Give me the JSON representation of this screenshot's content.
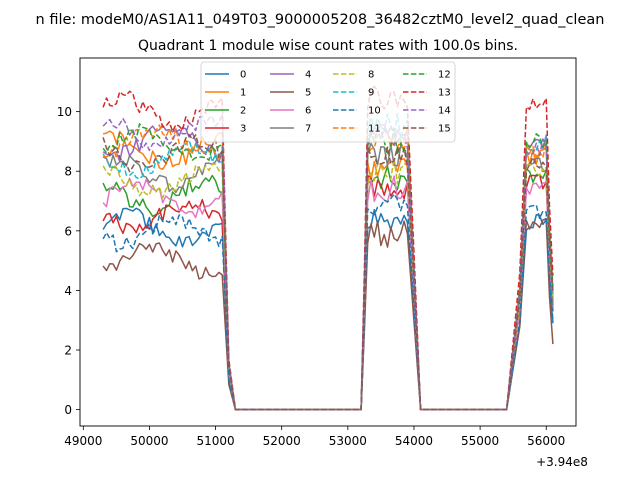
{
  "chart_data": {
    "type": "line",
    "suptitle": "n file: modeM0/AS1A11_049T03_9000005208_36482cztM0_level2_quad_clean",
    "title": "Quadrant 1 module wise count rates with 100.0s bins.",
    "xlabel": "",
    "ylabel": "",
    "x_offset_label": "+3.94e8",
    "xlim": [
      48950,
      56450
    ],
    "ylim": [
      -0.55,
      11.8
    ],
    "x_ticks": [
      49000,
      50000,
      51000,
      52000,
      53000,
      54000,
      55000,
      56000
    ],
    "x_tick_labels": [
      "49000",
      "50000",
      "51000",
      "52000",
      "53000",
      "54000",
      "55000",
      "56000"
    ],
    "y_ticks": [
      0,
      2,
      4,
      6,
      8,
      10
    ],
    "y_tick_labels": [
      "0",
      "2",
      "4",
      "6",
      "8",
      "10"
    ],
    "grid": false,
    "legend": {
      "location": "top-center",
      "columns": 4
    },
    "segments": [
      {
        "start": 49300,
        "end": 51100
      },
      {
        "start": 53300,
        "end": 53900
      },
      {
        "start": 55700,
        "end": 56100
      }
    ],
    "drop_points": [
      {
        "x": 51200,
        "factor": 0.17
      },
      {
        "x": 51300,
        "factor": 0.0
      },
      {
        "x": 53200,
        "factor": 0.0
      },
      {
        "x": 53250,
        "factor": 0.45
      },
      {
        "x": 54000,
        "factor": 0.5
      },
      {
        "x": 54100,
        "factor": 0.0
      },
      {
        "x": 55400,
        "factor": 0.0
      },
      {
        "x": 55600,
        "factor": 0.45
      }
    ],
    "series": [
      {
        "name": "0",
        "color": "#1f77b4",
        "dash": "solid",
        "levels": [
          6.1,
          6.4,
          6.3
        ],
        "end_value": 2.9
      },
      {
        "name": "1",
        "color": "#ff7f0e",
        "dash": "solid",
        "levels": [
          8.7,
          8.0,
          8.5
        ],
        "end_value": 3.6
      },
      {
        "name": "2",
        "color": "#2ca02c",
        "dash": "solid",
        "levels": [
          7.2,
          7.8,
          7.9
        ],
        "end_value": 3.4
      },
      {
        "name": "3",
        "color": "#d62728",
        "dash": "solid",
        "levels": [
          6.5,
          7.5,
          7.6
        ],
        "end_value": 3.3
      },
      {
        "name": "4",
        "color": "#9467bd",
        "dash": "solid",
        "levels": [
          9.0,
          9.2,
          9.0
        ],
        "end_value": 3.5
      },
      {
        "name": "5",
        "color": "#8c564b",
        "dash": "solid",
        "levels": [
          5.0,
          5.9,
          6.2
        ],
        "end_value": 2.2
      },
      {
        "name": "6",
        "color": "#e377c2",
        "dash": "solid",
        "levels": [
          7.1,
          7.4,
          7.4
        ],
        "end_value": 3.4
      },
      {
        "name": "7",
        "color": "#7f7f7f",
        "dash": "solid",
        "levels": [
          8.0,
          8.6,
          8.2
        ],
        "end_value": 3.5
      },
      {
        "name": "8",
        "color": "#bcbd22",
        "dash": "dashed",
        "levels": [
          7.7,
          8.0,
          8.0
        ],
        "end_value": 3.8
      },
      {
        "name": "9",
        "color": "#17becf",
        "dash": "dashed",
        "levels": [
          8.4,
          9.5,
          8.9
        ],
        "end_value": 3.9
      },
      {
        "name": "10",
        "color": "#1f77b4",
        "dash": "dashed",
        "levels": [
          6.0,
          6.8,
          6.6
        ],
        "end_value": 3.0
      },
      {
        "name": "11",
        "color": "#ff7f0e",
        "dash": "dashed",
        "levels": [
          9.0,
          9.0,
          8.7
        ],
        "end_value": 4.0
      },
      {
        "name": "12",
        "color": "#2ca02c",
        "dash": "dashed",
        "levels": [
          8.9,
          9.0,
          9.1
        ],
        "end_value": 4.1
      },
      {
        "name": "13",
        "color": "#d62728",
        "dash": "dashed",
        "levels": [
          10.0,
          10.5,
          10.2
        ],
        "end_value": 4.5
      },
      {
        "name": "14",
        "color": "#9467bd",
        "dash": "dashed",
        "levels": [
          9.3,
          9.1,
          8.8
        ],
        "end_value": 3.9
      },
      {
        "name": "15",
        "color": "#8c564b",
        "dash": "dashed",
        "levels": [
          8.6,
          8.5,
          8.3
        ],
        "end_value": 3.9
      }
    ]
  }
}
